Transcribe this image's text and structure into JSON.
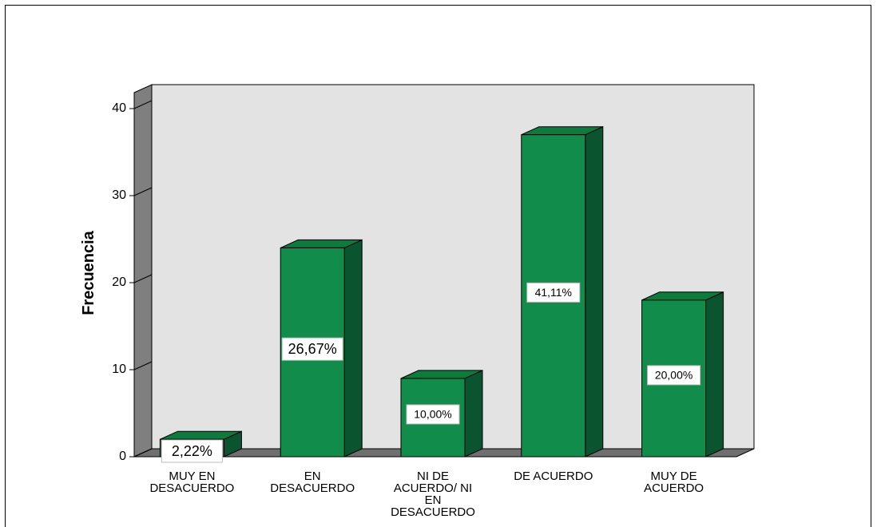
{
  "chart_data": {
    "type": "bar",
    "style": "3d",
    "categories": [
      [
        "MUY EN",
        "DESACUERDO"
      ],
      [
        "EN",
        "DESACUERDO"
      ],
      [
        "NI DE",
        "ACUERDO/ NI",
        "EN",
        "DESACUERDO"
      ],
      [
        "DE ACUERDO"
      ],
      [
        "MUY DE",
        "ACUERDO"
      ]
    ],
    "values": [
      2,
      24,
      9,
      37,
      18
    ],
    "data_labels": [
      "2,22%",
      "26,67%",
      "10,00%",
      "41,11%",
      "20,00%"
    ],
    "ylabel": "Frecuencia",
    "xlabel": "",
    "ylim": [
      0,
      40
    ],
    "yticks": [
      0,
      10,
      20,
      30,
      40
    ],
    "grid": false,
    "colors": {
      "bar_front": "#118c4a",
      "bar_top": "#0d7a3e",
      "bar_side": "#0a5530",
      "wall": "#e3e3e3",
      "left_wall": "#7f7f7f",
      "floor": "#6f6f6f",
      "border": "#000000",
      "label_bg": "#ffffff"
    }
  }
}
